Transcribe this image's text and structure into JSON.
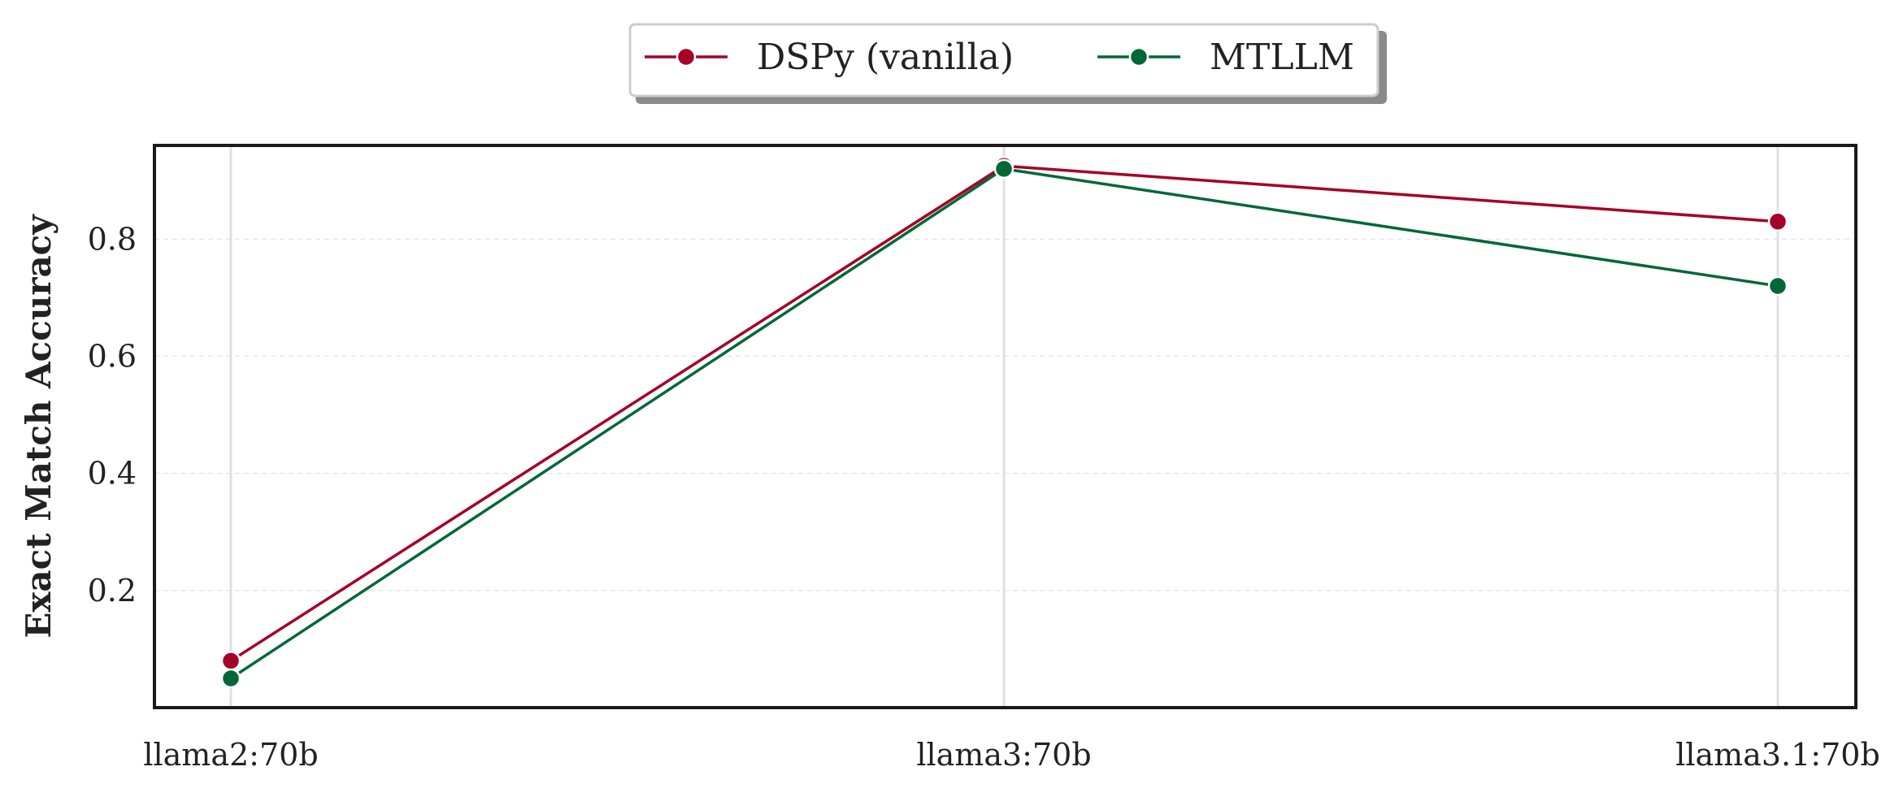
{
  "chart_data": {
    "type": "line",
    "categories": [
      "llama2:70b",
      "llama3:70b",
      "llama3.1:70b"
    ],
    "series": [
      {
        "name": "DSPy (vanilla)",
        "color": "#a50026",
        "values": [
          0.08,
          0.925,
          0.83
        ]
      },
      {
        "name": "MTLLM",
        "color": "#006837",
        "values": [
          0.05,
          0.92,
          0.72
        ]
      }
    ],
    "title": "",
    "xlabel": "",
    "ylabel": "Exact Match Accuracy",
    "ylim": [
      0.0,
      0.96
    ],
    "yticks": [
      0.2,
      0.4,
      0.6,
      0.8
    ],
    "ytick_labels": [
      "0.2",
      "0.4",
      "0.6",
      "0.8"
    ],
    "grid": true,
    "legend_position": "top-center"
  }
}
